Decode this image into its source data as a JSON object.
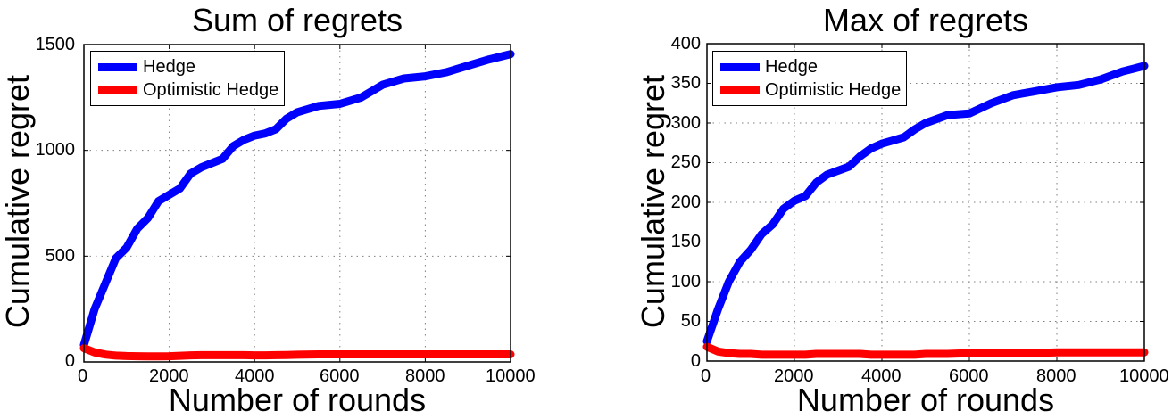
{
  "chart_data": [
    {
      "type": "line",
      "title": "Sum of regrets",
      "xlabel": "Number of rounds",
      "ylabel": "Cumulative regret",
      "xlim": [
        0,
        10000
      ],
      "ylim": [
        0,
        1500
      ],
      "xticks": [
        "0",
        "2000",
        "4000",
        "6000",
        "8000",
        "10000"
      ],
      "yticks": [
        "0",
        "500",
        "1000",
        "1500"
      ],
      "grid": true,
      "legend_position": "upper left",
      "x": [
        0,
        250,
        500,
        750,
        1000,
        1250,
        1500,
        1750,
        2000,
        2250,
        2500,
        2750,
        3000,
        3250,
        3500,
        3750,
        4000,
        4250,
        4500,
        4750,
        5000,
        5500,
        6000,
        6500,
        7000,
        7500,
        8000,
        8500,
        9000,
        9500,
        10000
      ],
      "series": [
        {
          "name": "Hedge",
          "color": "#0000ff",
          "values": [
            80,
            250,
            370,
            490,
            540,
            630,
            680,
            760,
            790,
            820,
            890,
            920,
            940,
            960,
            1020,
            1050,
            1070,
            1080,
            1100,
            1150,
            1180,
            1210,
            1220,
            1250,
            1310,
            1340,
            1350,
            1370,
            1400,
            1430,
            1455
          ]
        },
        {
          "name": "Optimistic Hedge",
          "color": "#ff0000",
          "values": [
            65,
            45,
            35,
            30,
            28,
            27,
            26,
            26,
            27,
            29,
            31,
            32,
            32,
            32,
            32,
            32,
            31,
            31,
            32,
            33,
            34,
            36,
            36,
            36,
            36,
            36,
            36,
            36,
            36,
            36,
            36
          ]
        }
      ]
    },
    {
      "type": "line",
      "title": "Max of regrets",
      "xlabel": "Number of rounds",
      "ylabel": "Cumulative regret",
      "xlim": [
        0,
        10000
      ],
      "ylim": [
        0,
        400
      ],
      "xticks": [
        "0",
        "2000",
        "4000",
        "6000",
        "8000",
        "10000"
      ],
      "yticks": [
        "0",
        "50",
        "100",
        "150",
        "200",
        "250",
        "300",
        "350",
        "400"
      ],
      "grid": true,
      "legend_position": "upper left",
      "x": [
        0,
        250,
        500,
        750,
        1000,
        1250,
        1500,
        1750,
        2000,
        2250,
        2500,
        2750,
        3000,
        3250,
        3500,
        3750,
        4000,
        4250,
        4500,
        4750,
        5000,
        5500,
        6000,
        6500,
        7000,
        7500,
        8000,
        8500,
        9000,
        9500,
        10000
      ],
      "series": [
        {
          "name": "Hedge",
          "color": "#0000ff",
          "values": [
            25,
            65,
            100,
            125,
            140,
            160,
            172,
            192,
            202,
            208,
            225,
            235,
            240,
            245,
            258,
            268,
            274,
            278,
            282,
            292,
            300,
            310,
            312,
            325,
            335,
            340,
            345,
            348,
            355,
            365,
            372
          ]
        },
        {
          "name": "Optimistic Hedge",
          "color": "#ff0000",
          "values": [
            18,
            12,
            10,
            9,
            9,
            8,
            8,
            8,
            8,
            8,
            9,
            9,
            9,
            9,
            9,
            8,
            8,
            8,
            8,
            8,
            9,
            9,
            10,
            10,
            10,
            10,
            11,
            11,
            11,
            11,
            11
          ]
        }
      ]
    }
  ],
  "charts": [
    {
      "title": "Sum of regrets",
      "xlabel": "Number of rounds",
      "ylabel": "Cumulative regret",
      "xticks": [
        "0",
        "2000",
        "4000",
        "6000",
        "8000",
        "10000"
      ],
      "yticks": [
        "0",
        "500",
        "1000",
        "1500"
      ],
      "legend": [
        "Hedge",
        "Optimistic Hedge"
      ]
    },
    {
      "title": "Max of regrets",
      "xlabel": "Number of rounds",
      "ylabel": "Cumulative regret",
      "xticks": [
        "0",
        "2000",
        "4000",
        "6000",
        "8000",
        "10000"
      ],
      "yticks": [
        "0",
        "50",
        "100",
        "150",
        "200",
        "250",
        "300",
        "350",
        "400"
      ],
      "legend": [
        "Hedge",
        "Optimistic Hedge"
      ]
    }
  ],
  "colors": {
    "hedge": "#0000ff",
    "optimistic_hedge": "#ff0000",
    "grid": "#7f7f7f",
    "axis": "#000000"
  }
}
